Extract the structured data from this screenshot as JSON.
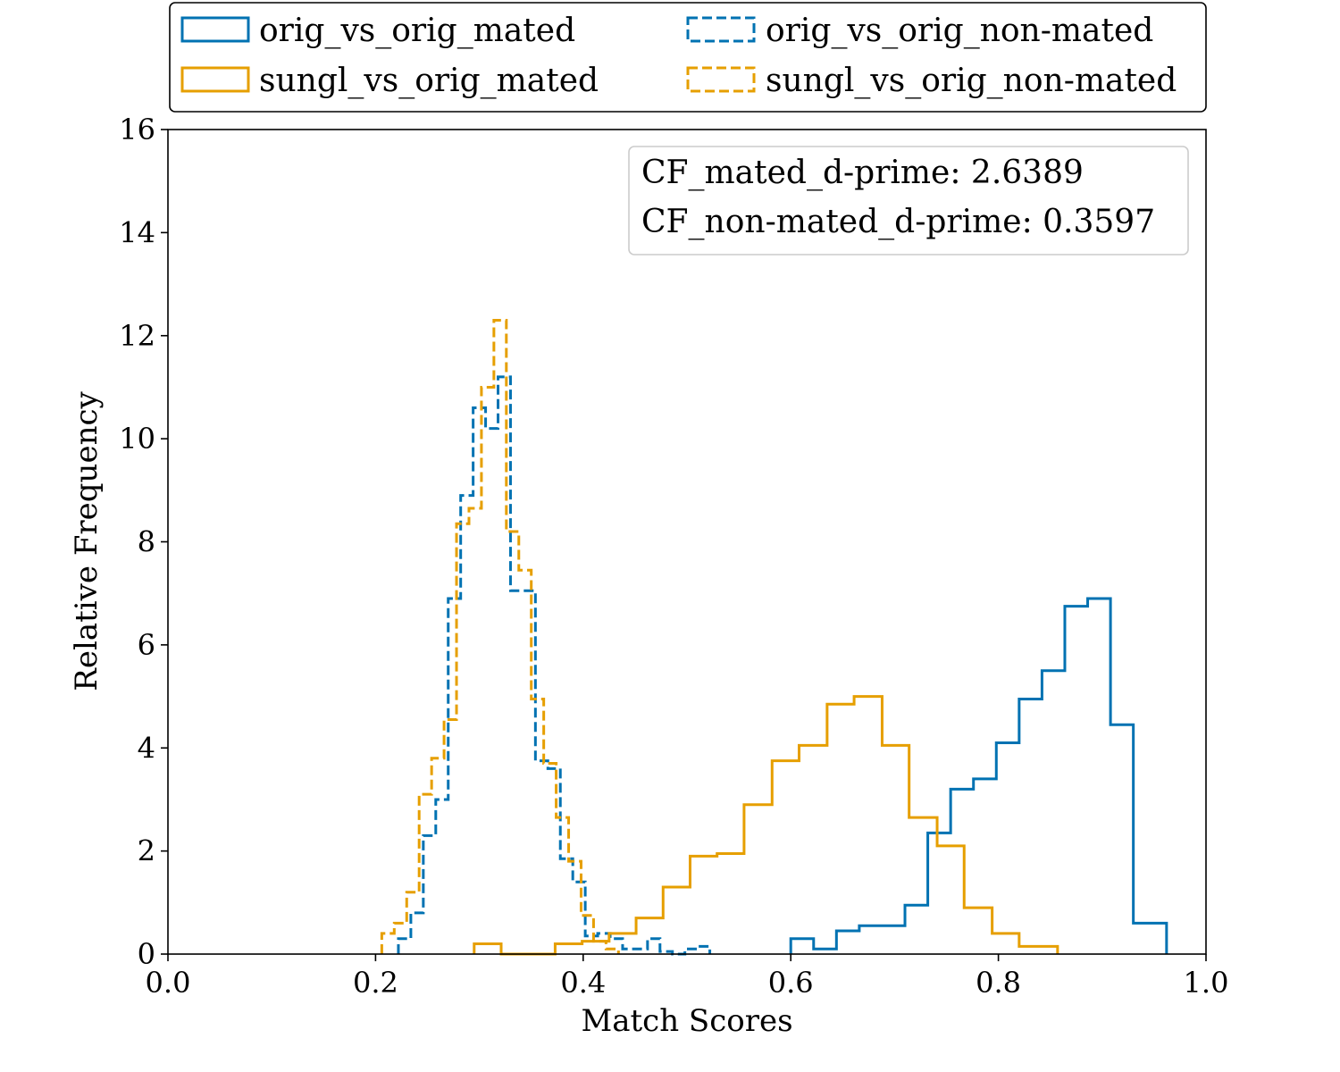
{
  "chart_data": {
    "type": "histogram",
    "xlabel": "Match Scores",
    "ylabel": "Relative Frequency",
    "xlim": [
      0.0,
      1.0
    ],
    "ylim": [
      0,
      16
    ],
    "xticks": [
      "0.0",
      "0.2",
      "0.4",
      "0.6",
      "0.8",
      "1.0"
    ],
    "yticks": [
      "0",
      "2",
      "4",
      "6",
      "8",
      "10",
      "12",
      "14",
      "16"
    ],
    "legend_position": "above plot, two columns",
    "colors": {
      "orig": "#0072b2",
      "sungl": "#e69f00"
    },
    "series": [
      {
        "name": "orig_vs_orig_mated",
        "color": "#0072b2",
        "linestyle": "solid",
        "edges": [
          0.6,
          0.622,
          0.644,
          0.666,
          0.688,
          0.71,
          0.732,
          0.754,
          0.776,
          0.798,
          0.82,
          0.842,
          0.864,
          0.886,
          0.908,
          0.93,
          0.962
        ],
        "values": [
          0.3,
          0.1,
          0.45,
          0.55,
          0.55,
          0.95,
          2.35,
          3.2,
          3.4,
          4.1,
          4.95,
          5.5,
          6.75,
          6.9,
          4.45,
          0.6
        ]
      },
      {
        "name": "orig_vs_orig_non-mated",
        "color": "#0072b2",
        "linestyle": "dashed",
        "edges": [
          0.222,
          0.234,
          0.246,
          0.258,
          0.27,
          0.282,
          0.294,
          0.306,
          0.318,
          0.33,
          0.342,
          0.354,
          0.366,
          0.378,
          0.39,
          0.402,
          0.414,
          0.426,
          0.438,
          0.45,
          0.462,
          0.474,
          0.486,
          0.498,
          0.51,
          0.522
        ],
        "values": [
          0.3,
          0.8,
          2.3,
          3.0,
          6.9,
          8.9,
          10.6,
          10.2,
          11.2,
          7.05,
          7.05,
          3.75,
          3.6,
          1.85,
          1.4,
          0.35,
          0.4,
          0.3,
          0.1,
          0.1,
          0.3,
          0.05,
          0.0,
          0.1,
          0.15
        ]
      },
      {
        "name": "sungl_vs_orig_mated",
        "color": "#e69f00",
        "linestyle": "solid",
        "edges": [
          0.295,
          0.321,
          0.347,
          0.373,
          0.399,
          0.425,
          0.451,
          0.477,
          0.503,
          0.529,
          0.555,
          0.582,
          0.608,
          0.635,
          0.661,
          0.688,
          0.714,
          0.741,
          0.767,
          0.794,
          0.82,
          0.857
        ],
        "values": [
          0.2,
          0.0,
          0.0,
          0.2,
          0.25,
          0.4,
          0.7,
          1.3,
          1.9,
          1.95,
          2.9,
          3.75,
          4.05,
          4.85,
          5.0,
          4.05,
          2.65,
          2.1,
          0.9,
          0.4,
          0.15
        ]
      },
      {
        "name": "sungl_vs_orig_non-mated",
        "color": "#e69f00",
        "linestyle": "dashed",
        "edges": [
          0.206,
          0.218,
          0.23,
          0.242,
          0.254,
          0.266,
          0.278,
          0.29,
          0.302,
          0.314,
          0.326,
          0.338,
          0.35,
          0.362,
          0.374,
          0.386,
          0.398,
          0.41,
          0.422,
          0.434
        ],
        "values": [
          0.4,
          0.6,
          1.2,
          3.1,
          3.8,
          4.55,
          8.35,
          8.65,
          11.0,
          12.3,
          8.2,
          7.45,
          4.95,
          3.7,
          2.65,
          1.8,
          0.75,
          0.25,
          0.1
        ]
      }
    ],
    "annotations": [
      "CF_mated_d-prime: 2.6389",
      "CF_non-mated_d-prime: 0.3597"
    ]
  }
}
